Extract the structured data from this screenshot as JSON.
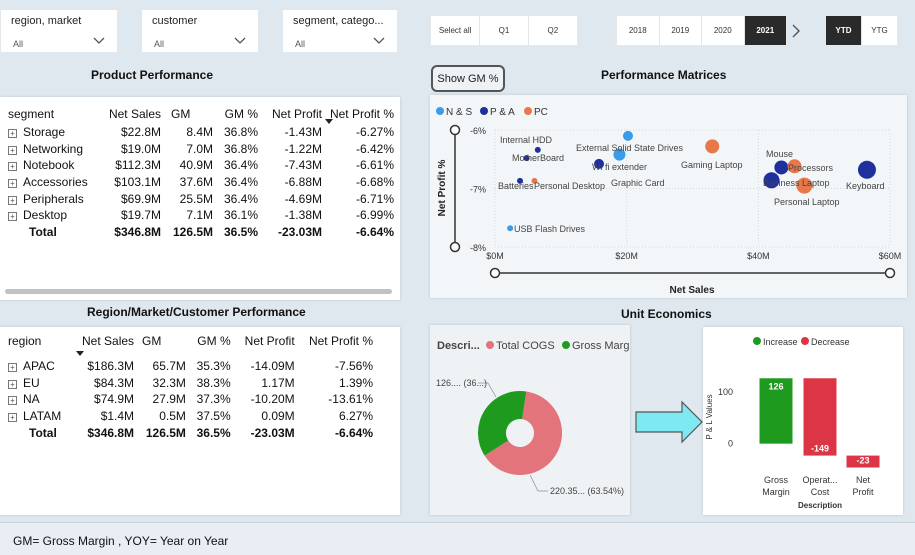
{
  "slicers": [
    {
      "label": "region, market",
      "value": "All"
    },
    {
      "label": "customer",
      "value": "All"
    },
    {
      "label": "segment, catego...",
      "value": "All"
    }
  ],
  "quarter_buttons": [
    "Select all",
    "Q1",
    "Q2"
  ],
  "year_buttons": [
    "2018",
    "2019",
    "2020",
    "2021"
  ],
  "selected_year": "2021",
  "ytd_buttons": [
    "YTD",
    "YTG"
  ],
  "selected_ytd": "YTD",
  "show_gm_button": "Show GM %",
  "product_performance": {
    "title": "Product Performance",
    "columns": [
      "segment",
      "Net Sales",
      "GM",
      "GM %",
      "Net Profit",
      "Net Profit %"
    ],
    "rows": [
      [
        "Storage",
        "$22.8M",
        "8.4M",
        "36.8%",
        "-1.43M",
        "-6.27%"
      ],
      [
        "Networking",
        "$19.0M",
        "7.0M",
        "36.8%",
        "-1.22M",
        "-6.42%"
      ],
      [
        "Notebook",
        "$112.3M",
        "40.9M",
        "36.4%",
        "-7.43M",
        "-6.61%"
      ],
      [
        "Accessories",
        "$103.1M",
        "37.6M",
        "36.4%",
        "-6.88M",
        "-6.68%"
      ],
      [
        "Peripherals",
        "$69.9M",
        "25.5M",
        "36.4%",
        "-4.69M",
        "-6.71%"
      ],
      [
        "Desktop",
        "$19.7M",
        "7.1M",
        "36.1%",
        "-1.38M",
        "-6.99%"
      ]
    ],
    "total": [
      "Total",
      "$346.8M",
      "126.5M",
      "36.5%",
      "-23.03M",
      "-6.64%"
    ]
  },
  "region_performance": {
    "title": "Region/Market/Customer Performance",
    "columns": [
      "region",
      "Net Sales",
      "GM",
      "GM %",
      "Net Profit",
      "Net Profit %"
    ],
    "rows": [
      [
        "APAC",
        "$186.3M",
        "65.7M",
        "35.3%",
        "-14.09M",
        "-7.56%"
      ],
      [
        "EU",
        "$84.3M",
        "32.3M",
        "38.3%",
        "1.17M",
        "1.39%"
      ],
      [
        "NA",
        "$74.9M",
        "27.9M",
        "37.3%",
        "-10.20M",
        "-13.61%"
      ],
      [
        "LATAM",
        "$1.4M",
        "0.5M",
        "37.5%",
        "0.09M",
        "6.27%"
      ]
    ],
    "total": [
      "Total",
      "$346.8M",
      "126.5M",
      "36.5%",
      "-23.03M",
      "-6.64%"
    ]
  },
  "performance_matrices": {
    "title": "Performance Matrices",
    "chart_data": {
      "type": "scatter",
      "legend": [
        {
          "name": "N & S",
          "color": "#3a9bea"
        },
        {
          "name": "P & A",
          "color": "#1f2f9c"
        },
        {
          "name": "PC",
          "color": "#e8774a"
        }
      ],
      "xlabel": "Net Sales",
      "ylabel": "Net Profit %",
      "xlim": [
        0,
        60
      ],
      "ylim": [
        -8,
        -6
      ],
      "x_ticks": [
        "$0M",
        "$20M",
        "$40M",
        "$60M"
      ],
      "y_ticks": [
        "-6%",
        "-7%",
        "-8%"
      ],
      "points": [
        {
          "label": "Internal HDD",
          "x": 6.5,
          "y": -6.34,
          "group": "P & A",
          "size": 3
        },
        {
          "label": "MotherBoard",
          "x": 4.8,
          "y": -6.48,
          "group": "P & A",
          "size": 3
        },
        {
          "label": "External Solid State Drives",
          "x": 20.2,
          "y": -6.1,
          "group": "N & S",
          "size": 5
        },
        {
          "label": "Wi fi extender",
          "x": 18.9,
          "y": -6.42,
          "group": "N & S",
          "size": 6
        },
        {
          "label": "Graphic Card",
          "x": 15.8,
          "y": -6.58,
          "group": "P & A",
          "size": 5
        },
        {
          "label": "Gaming Laptop",
          "x": 33.0,
          "y": -6.28,
          "group": "PC",
          "size": 7
        },
        {
          "label": "Batteries",
          "x": 3.8,
          "y": -6.87,
          "group": "P & A",
          "size": 3
        },
        {
          "label": "Personal Desktop",
          "x": 6.0,
          "y": -6.87,
          "group": "PC",
          "size": 3
        },
        {
          "label": "Mouse",
          "x": 43.5,
          "y": -6.64,
          "group": "P & A",
          "size": 7
        },
        {
          "label": "Processors",
          "x": 45.5,
          "y": -6.62,
          "group": "PC",
          "size": 7
        },
        {
          "label": "Business Laptop",
          "x": 42.0,
          "y": -6.86,
          "group": "P & A",
          "size": 8
        },
        {
          "label": "Personal Laptop",
          "x": 47.0,
          "y": -6.95,
          "group": "PC",
          "size": 8
        },
        {
          "label": "Keyboard",
          "x": 56.5,
          "y": -6.68,
          "group": "P & A",
          "size": 9
        },
        {
          "label": "USB Flash Drives",
          "x": 2.3,
          "y": -7.68,
          "group": "N & S",
          "size": 3
        }
      ]
    }
  },
  "unit_economics": {
    "title": "Unit Economics",
    "donut": {
      "chart_data": {
        "type": "pie",
        "legend_title": "Descri...",
        "slices": [
          {
            "name": "Total COGS",
            "value": 220.35,
            "percent": 63.54,
            "color": "#e3747c",
            "label": "220.35... (63.54%)"
          },
          {
            "name": "Gross Margin",
            "value": 126.45,
            "percent": 36.46,
            "color": "#1e9b1e",
            "label": "126.... (36...)"
          }
        ]
      }
    },
    "waterfall": {
      "chart_data": {
        "type": "bar",
        "legend": [
          {
            "name": "Increase",
            "color": "#1e9b1e"
          },
          {
            "name": "Decrease",
            "color": "#dc3545"
          }
        ],
        "categories": [
          "Gross Margin",
          "Operat... Cost",
          "Net Profit"
        ],
        "category_lines": [
          [
            "Gross",
            "Margin"
          ],
          [
            "Operat...",
            "Cost"
          ],
          [
            "Net",
            "Profit"
          ]
        ],
        "values": [
          126,
          -149,
          -23
        ],
        "value_labels": [
          "126",
          "-149",
          "-23"
        ],
        "xlabel": "Description",
        "ylabel": "P & L Values",
        "y_ticks": [
          100,
          0
        ],
        "ylim": [
          -45,
          140
        ]
      }
    }
  },
  "footer": "GM= Gross Margin , YOY= Year on Year"
}
